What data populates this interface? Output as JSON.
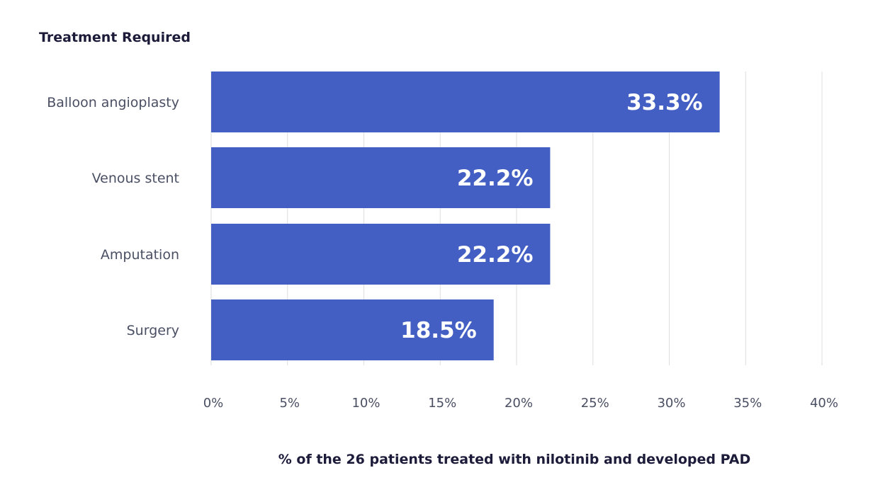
{
  "chart_data": {
    "type": "bar",
    "orientation": "horizontal",
    "title": "Treatment Required",
    "xlabel": "% of the 26 patients treated with nilotinib and developed PAD",
    "ylabel": "",
    "categories": [
      "Balloon angioplasty",
      "Venous stent",
      "Amputation",
      "Surgery"
    ],
    "values": [
      33.3,
      22.2,
      22.2,
      18.5
    ],
    "data_labels": [
      "33.3%",
      "22.2%",
      "22.2%",
      "18.5%"
    ],
    "xlim": [
      0,
      40
    ],
    "x_ticks": [
      0,
      5,
      10,
      15,
      20,
      25,
      30,
      35,
      40
    ],
    "x_tick_labels": [
      "0%",
      "5%",
      "10%",
      "15%",
      "20%",
      "25%",
      "30%",
      "35%",
      "40%"
    ],
    "grid": true,
    "legend": "none",
    "colors": {
      "bar": "#445fc3",
      "data_label": "#ffffff",
      "grid": "#dedede",
      "text": "#4a4f63",
      "title": "#1c1c3a"
    }
  }
}
